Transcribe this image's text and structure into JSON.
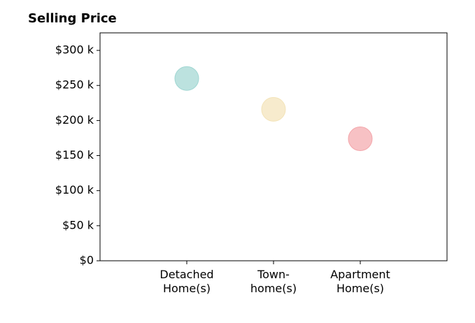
{
  "chart_data": {
    "type": "scatter",
    "title": "Selling Price",
    "xlabel": "",
    "ylabel": "",
    "categories": [
      [
        "Detached",
        "Home(s)"
      ],
      [
        "Town-",
        "home(s)"
      ],
      [
        "Apartment",
        "Home(s)"
      ]
    ],
    "values": [
      260,
      216,
      174
    ],
    "colors": [
      "#9fd6d2",
      "#f3e3b8",
      "#f3a6ab"
    ],
    "yticks": [
      {
        "value": 0,
        "label": "$0"
      },
      {
        "value": 50,
        "label": "$50 k"
      },
      {
        "value": 100,
        "label": "$100 k"
      },
      {
        "value": 150,
        "label": "$150 k"
      },
      {
        "value": 200,
        "label": "$200 k"
      },
      {
        "value": 250,
        "label": "$250 k"
      },
      {
        "value": 300,
        "label": "$300 k"
      }
    ],
    "ylim": [
      0,
      325
    ],
    "xlim": [
      0,
      4
    ],
    "grid": false,
    "legend": "none"
  }
}
